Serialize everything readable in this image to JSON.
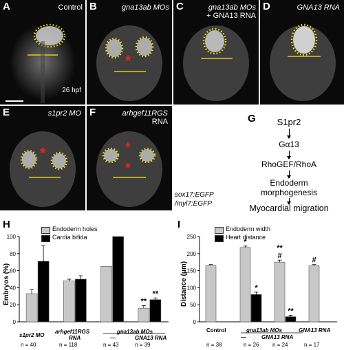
{
  "panels": [
    {
      "letter": "A",
      "title": "Control",
      "stage": "26 hpf"
    },
    {
      "letter": "B",
      "title": "gna13ab MOs"
    },
    {
      "letter": "C",
      "title_line1": "gna13ab MOs",
      "title_line2": "+ GNA13 RNA"
    },
    {
      "letter": "D",
      "title": "GNA13 RNA"
    },
    {
      "letter": "E",
      "title": "s1pr2 MO"
    },
    {
      "letter": "F",
      "title_line1": "arhgef11RGS",
      "title_line2": "RNA"
    }
  ],
  "transgene": {
    "line1": "sox17:EGFP",
    "line2": "/myl7:EGFP"
  },
  "pathway": {
    "letter": "G",
    "steps": [
      "S1pr2",
      "Gα13",
      "RhoGEF/RhoA",
      "Endoderm",
      "morphogenesis",
      "Myocardial migration"
    ]
  },
  "colors": {
    "holes_bar": "#c8c8c8",
    "bifida_bar": "#000000",
    "dotted_outline": "#ffef00",
    "line": "#e8c81a",
    "asterisk": "#e3261b"
  },
  "chartH": {
    "letter": "H",
    "legend": [
      "Endoderm holes",
      "Cardia bifida"
    ],
    "ylabel": "Embryos (%)",
    "yticks": [
      "0",
      "20",
      "40",
      "60",
      "80",
      "100"
    ],
    "labels": [
      "s1pr2 MO",
      "arhgef11RGS",
      "RNA",
      "gna13ab MOs",
      "—",
      "GNA13 RNA"
    ],
    "n": [
      "n = 40",
      "n = 118",
      "n = 43",
      "n = 39"
    ],
    "sig": "**"
  },
  "chartI": {
    "letter": "I",
    "legend": [
      "Endoderm width",
      "Heart distance"
    ],
    "ylabel": "Distance (μm)",
    "yticks": [
      "0",
      "50",
      "100",
      "150",
      "200",
      "250"
    ],
    "labels": [
      "Control",
      "gna13ab MOs",
      "—",
      "GNA13 RNA",
      "GNA13 RNA"
    ],
    "n": [
      "n = 38",
      "n = 26",
      "n = 24",
      "n = 17"
    ],
    "sig_star": "*",
    "sig_dstar": "**",
    "sig_hash": "#"
  },
  "chart_data": [
    {
      "type": "bar",
      "categories": [
        "s1pr2 MO",
        "arhgef11RGS RNA",
        "gna13ab MOs",
        "gna13ab MOs + GNA13 RNA"
      ],
      "series": [
        {
          "name": "Endoderm holes",
          "values": [
            33,
            48,
            65,
            16
          ],
          "errors": [
            5,
            2,
            0,
            3
          ]
        },
        {
          "name": "Cardia bifida",
          "values": [
            71,
            50,
            100,
            26
          ],
          "errors": [
            18,
            4,
            0,
            2
          ]
        }
      ],
      "ylabel": "Embryos (%)",
      "ylim": [
        0,
        100
      ],
      "n": [
        40,
        118,
        43,
        39
      ],
      "legend": "top-left"
    },
    {
      "type": "bar",
      "categories": [
        "Control",
        "gna13ab MOs",
        "gna13ab MOs + GNA13 RNA",
        "GNA13 RNA"
      ],
      "series": [
        {
          "name": "Endoderm width",
          "values": [
            165,
            218,
            175,
            164
          ],
          "errors": [
            3,
            4,
            6,
            4
          ]
        },
        {
          "name": "Heart distance",
          "values": [
            null,
            80,
            15,
            null
          ],
          "errors": [
            null,
            7,
            4,
            null
          ]
        }
      ],
      "ylabel": "Distance (μm)",
      "ylim": [
        0,
        250
      ],
      "n": [
        38,
        26,
        24,
        17
      ],
      "legend": "top-left"
    }
  ]
}
